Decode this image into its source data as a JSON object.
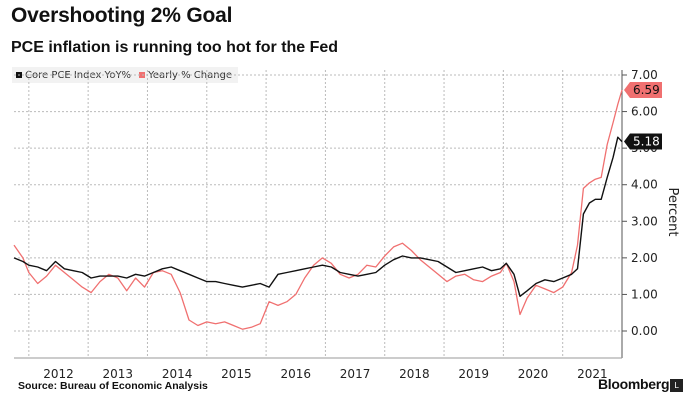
{
  "title": "Overshooting 2% Goal",
  "subtitle": "PCE inflation is running too hot for the Fed",
  "source": "Source: Bureau of Economic Analysis",
  "brand": "Bloomberg",
  "brand_mark": "L",
  "colors": {
    "core": "#111111",
    "yearly": "#f07070",
    "grid": "#bbbbbb"
  },
  "chart_data": {
    "type": "line",
    "ylabel": "Percent",
    "ylim": [
      -0.5,
      7.2
    ],
    "yticks": [
      "0.00",
      "1.00",
      "2.00",
      "3.00",
      "4.00",
      "5.00",
      "6.00",
      "7.00"
    ],
    "xlim": [
      2011.75,
      2022.0
    ],
    "xticks": [
      "2012",
      "2013",
      "2014",
      "2015",
      "2016",
      "2017",
      "2018",
      "2019",
      "2020",
      "2021"
    ],
    "grid": true,
    "legend": "top-left",
    "series": [
      {
        "name": "Core PCE Index YoY%",
        "color": "#111111",
        "end_label": "5.18",
        "points": [
          [
            2011.75,
            2.0
          ],
          [
            2011.9,
            1.9
          ],
          [
            2012.0,
            1.8
          ],
          [
            2012.15,
            1.75
          ],
          [
            2012.3,
            1.65
          ],
          [
            2012.45,
            1.9
          ],
          [
            2012.6,
            1.7
          ],
          [
            2012.75,
            1.65
          ],
          [
            2012.9,
            1.6
          ],
          [
            2013.05,
            1.45
          ],
          [
            2013.2,
            1.5
          ],
          [
            2013.35,
            1.5
          ],
          [
            2013.5,
            1.5
          ],
          [
            2013.65,
            1.45
          ],
          [
            2013.8,
            1.55
          ],
          [
            2013.95,
            1.5
          ],
          [
            2014.1,
            1.6
          ],
          [
            2014.25,
            1.7
          ],
          [
            2014.4,
            1.75
          ],
          [
            2014.55,
            1.65
          ],
          [
            2014.7,
            1.55
          ],
          [
            2014.85,
            1.45
          ],
          [
            2015.0,
            1.35
          ],
          [
            2015.15,
            1.35
          ],
          [
            2015.3,
            1.3
          ],
          [
            2015.45,
            1.25
          ],
          [
            2015.6,
            1.2
          ],
          [
            2015.75,
            1.25
          ],
          [
            2015.9,
            1.3
          ],
          [
            2016.05,
            1.2
          ],
          [
            2016.2,
            1.55
          ],
          [
            2016.35,
            1.6
          ],
          [
            2016.5,
            1.65
          ],
          [
            2016.65,
            1.7
          ],
          [
            2016.8,
            1.75
          ],
          [
            2016.95,
            1.8
          ],
          [
            2017.1,
            1.75
          ],
          [
            2017.25,
            1.6
          ],
          [
            2017.4,
            1.55
          ],
          [
            2017.55,
            1.5
          ],
          [
            2017.7,
            1.55
          ],
          [
            2017.85,
            1.6
          ],
          [
            2018.0,
            1.8
          ],
          [
            2018.15,
            1.95
          ],
          [
            2018.3,
            2.05
          ],
          [
            2018.45,
            2.0
          ],
          [
            2018.6,
            2.0
          ],
          [
            2018.75,
            1.95
          ],
          [
            2018.9,
            1.9
          ],
          [
            2019.05,
            1.75
          ],
          [
            2019.2,
            1.6
          ],
          [
            2019.35,
            1.65
          ],
          [
            2019.5,
            1.7
          ],
          [
            2019.65,
            1.75
          ],
          [
            2019.8,
            1.65
          ],
          [
            2019.95,
            1.7
          ],
          [
            2020.05,
            1.85
          ],
          [
            2020.18,
            1.55
          ],
          [
            2020.28,
            0.95
          ],
          [
            2020.4,
            1.1
          ],
          [
            2020.55,
            1.3
          ],
          [
            2020.7,
            1.4
          ],
          [
            2020.85,
            1.35
          ],
          [
            2021.0,
            1.45
          ],
          [
            2021.15,
            1.55
          ],
          [
            2021.25,
            1.7
          ],
          [
            2021.35,
            3.2
          ],
          [
            2021.45,
            3.5
          ],
          [
            2021.55,
            3.6
          ],
          [
            2021.65,
            3.6
          ],
          [
            2021.75,
            4.2
          ],
          [
            2021.85,
            4.75
          ],
          [
            2021.93,
            5.3
          ],
          [
            2022.0,
            5.18
          ]
        ]
      },
      {
        "name": "Yearly % Change",
        "color": "#f07070",
        "end_label": "6.59",
        "points": [
          [
            2011.75,
            2.35
          ],
          [
            2011.9,
            2.0
          ],
          [
            2012.0,
            1.6
          ],
          [
            2012.15,
            1.3
          ],
          [
            2012.3,
            1.5
          ],
          [
            2012.45,
            1.8
          ],
          [
            2012.6,
            1.6
          ],
          [
            2012.75,
            1.4
          ],
          [
            2012.9,
            1.2
          ],
          [
            2013.05,
            1.05
          ],
          [
            2013.2,
            1.35
          ],
          [
            2013.35,
            1.55
          ],
          [
            2013.5,
            1.45
          ],
          [
            2013.65,
            1.1
          ],
          [
            2013.8,
            1.45
          ],
          [
            2013.95,
            1.2
          ],
          [
            2014.1,
            1.6
          ],
          [
            2014.25,
            1.65
          ],
          [
            2014.4,
            1.55
          ],
          [
            2014.55,
            1.05
          ],
          [
            2014.7,
            0.3
          ],
          [
            2014.85,
            0.15
          ],
          [
            2015.0,
            0.25
          ],
          [
            2015.15,
            0.2
          ],
          [
            2015.3,
            0.25
          ],
          [
            2015.45,
            0.15
          ],
          [
            2015.6,
            0.05
          ],
          [
            2015.75,
            0.1
          ],
          [
            2015.9,
            0.2
          ],
          [
            2016.05,
            0.8
          ],
          [
            2016.2,
            0.7
          ],
          [
            2016.35,
            0.8
          ],
          [
            2016.5,
            1.0
          ],
          [
            2016.65,
            1.45
          ],
          [
            2016.8,
            1.8
          ],
          [
            2016.95,
            2.0
          ],
          [
            2017.1,
            1.85
          ],
          [
            2017.25,
            1.55
          ],
          [
            2017.4,
            1.45
          ],
          [
            2017.55,
            1.55
          ],
          [
            2017.7,
            1.8
          ],
          [
            2017.85,
            1.75
          ],
          [
            2018.0,
            2.05
          ],
          [
            2018.15,
            2.3
          ],
          [
            2018.3,
            2.4
          ],
          [
            2018.45,
            2.2
          ],
          [
            2018.6,
            1.95
          ],
          [
            2018.75,
            1.75
          ],
          [
            2018.9,
            1.55
          ],
          [
            2019.05,
            1.35
          ],
          [
            2019.2,
            1.5
          ],
          [
            2019.35,
            1.55
          ],
          [
            2019.5,
            1.4
          ],
          [
            2019.65,
            1.35
          ],
          [
            2019.8,
            1.5
          ],
          [
            2019.95,
            1.6
          ],
          [
            2020.05,
            1.85
          ],
          [
            2020.18,
            1.35
          ],
          [
            2020.28,
            0.45
          ],
          [
            2020.4,
            0.9
          ],
          [
            2020.55,
            1.25
          ],
          [
            2020.7,
            1.15
          ],
          [
            2020.85,
            1.05
          ],
          [
            2021.0,
            1.2
          ],
          [
            2021.15,
            1.6
          ],
          [
            2021.25,
            2.35
          ],
          [
            2021.35,
            3.9
          ],
          [
            2021.45,
            4.05
          ],
          [
            2021.55,
            4.15
          ],
          [
            2021.65,
            4.2
          ],
          [
            2021.75,
            5.1
          ],
          [
            2021.85,
            5.7
          ],
          [
            2021.93,
            6.2
          ],
          [
            2022.0,
            6.59
          ]
        ]
      }
    ]
  }
}
